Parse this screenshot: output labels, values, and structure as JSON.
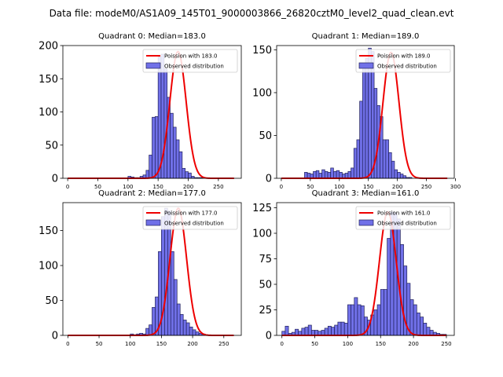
{
  "suptitle": "Data file: modeM0/AS1A09_145T01_9000003866_26820cztM0_level2_quad_clean.evt",
  "colors": {
    "hist_fill": "#7070e8",
    "hist_edge": "#20205a",
    "poisson_line": "#ee0000"
  },
  "chart_data": [
    {
      "type": "bar",
      "title": "Quadrant 0: Median=183.0",
      "xlim": [
        -8,
        288
      ],
      "ylim": [
        0,
        200
      ],
      "xticks": [
        0,
        50,
        100,
        150,
        200,
        250
      ],
      "yticks": [
        0,
        50,
        100,
        150,
        200
      ],
      "legend": {
        "position": "top-right",
        "entries": [
          "Poission with 183.0",
          "Observed distribution"
        ]
      },
      "median": 183.0,
      "poisson_peak": 191,
      "bin_start": 100,
      "bin_width": 5,
      "values": [
        3,
        2,
        1,
        1,
        3,
        5,
        12,
        35,
        92,
        93,
        183,
        187,
        165,
        122,
        98,
        77,
        58,
        40,
        15,
        10,
        8,
        3,
        1,
        1,
        1
      ]
    },
    {
      "type": "bar",
      "title": "Quadrant 1: Median=189.0",
      "xlim": [
        -8,
        298
      ],
      "ylim": [
        0,
        155
      ],
      "xticks": [
        0,
        50,
        100,
        150,
        200,
        250,
        300
      ],
      "yticks": [
        0,
        50,
        100,
        150
      ],
      "legend": {
        "position": "top-right",
        "entries": [
          "Poission with 189.0",
          "Observed distribution"
        ]
      },
      "median": 189.0,
      "poisson_peak": 147,
      "bin_start": 40,
      "bin_width": 5,
      "values": [
        7,
        6,
        5,
        8,
        9,
        6,
        10,
        8,
        7,
        12,
        8,
        9,
        7,
        5,
        6,
        8,
        12,
        35,
        45,
        90,
        130,
        140,
        152,
        148,
        105,
        85,
        72,
        45,
        45,
        30,
        20,
        10,
        7,
        5,
        3,
        1,
        1
      ]
    },
    {
      "type": "bar",
      "title": "Quadrant 2: Median=177.0",
      "xlim": [
        -8,
        278
      ],
      "ylim": [
        0,
        190
      ],
      "xticks": [
        0,
        50,
        100,
        150,
        200,
        250
      ],
      "yticks": [
        0,
        50,
        100,
        150
      ],
      "legend": {
        "position": "top-right",
        "entries": [
          "Poission with 177.0",
          "Observed distribution"
        ]
      },
      "median": 177.0,
      "poisson_peak": 182,
      "bin_start": 100,
      "bin_width": 5,
      "values": [
        2,
        1,
        2,
        3,
        2,
        10,
        15,
        40,
        55,
        120,
        170,
        182,
        178,
        120,
        80,
        45,
        30,
        22,
        18,
        12,
        8,
        5,
        3,
        2
      ]
    },
    {
      "type": "bar",
      "title": "Quadrant 3: Median=161.0",
      "xlim": [
        -8,
        262
      ],
      "ylim": [
        0,
        130
      ],
      "xticks": [
        0,
        50,
        100,
        150,
        200,
        250
      ],
      "yticks": [
        0,
        25,
        50,
        75,
        100,
        125
      ],
      "legend": {
        "position": "top-right",
        "entries": [
          "Poission with 161.0",
          "Observed distribution"
        ]
      },
      "median": 161.0,
      "poisson_peak": 121,
      "bin_start": 0,
      "bin_width": 5,
      "values": [
        4,
        9,
        2,
        3,
        6,
        4,
        7,
        8,
        10,
        5,
        5,
        4,
        5,
        7,
        9,
        8,
        10,
        13,
        13,
        12,
        30,
        30,
        37,
        30,
        29,
        18,
        15,
        20,
        25,
        30,
        45,
        45,
        95,
        121,
        120,
        114,
        89,
        68,
        51,
        35,
        30,
        22,
        18,
        12,
        8,
        5,
        3,
        2,
        1,
        1
      ]
    }
  ]
}
